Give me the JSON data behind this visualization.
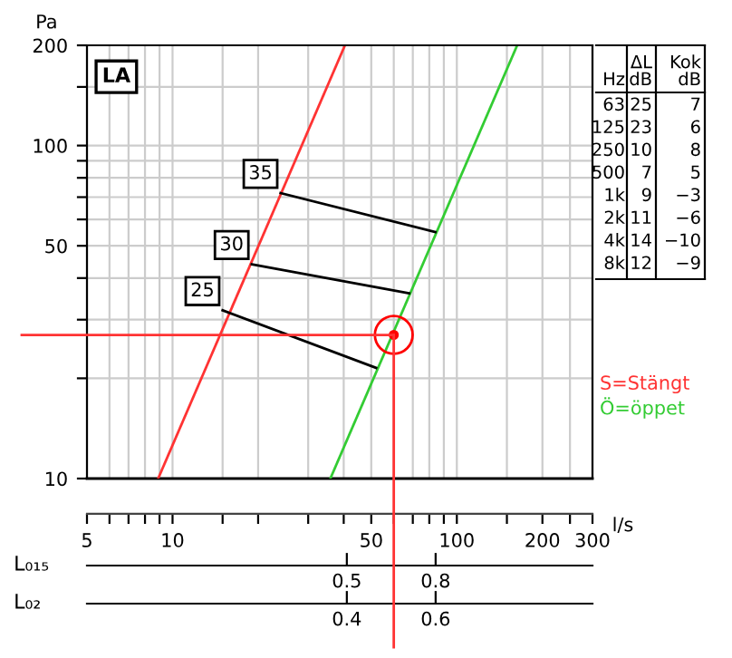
{
  "chart_data": {
    "type": "line",
    "log": "xy",
    "xlabel": "l/s",
    "ylabel": "Pa",
    "x2label": "L₀₁₅",
    "x2lim": [
      -0.378,
      1.33
    ],
    "x2ticks": [
      0.5,
      0.8
    ],
    "xlim": [
      5,
      300
    ],
    "ylim": [
      10,
      200
    ],
    "xticks": [
      5,
      {
        "value": 6,
        "label": null
      },
      {
        "value": 7,
        "label": null
      },
      {
        "value": 8,
        "label": null
      },
      {
        "value": 9,
        "label": null
      },
      10,
      {
        "value": 15,
        "label": null
      },
      {
        "value": 20,
        "label": null
      },
      {
        "value": 30,
        "label": null
      },
      {
        "value": 40,
        "label": null
      },
      50,
      {
        "value": 60,
        "label": null
      },
      {
        "value": 70,
        "label": null
      },
      {
        "value": 80,
        "label": null
      },
      {
        "value": 90,
        "label": null
      },
      100,
      {
        "value": 150,
        "label": null
      },
      200,
      {
        "value": 250,
        "label": null
      },
      300
    ],
    "yticks": [
      10,
      {
        "value": 20,
        "label": null
      },
      {
        "value": 30,
        "label": null
      },
      {
        "value": 40,
        "label": null
      },
      50,
      {
        "value": 60,
        "label": null
      },
      {
        "value": 70,
        "label": null
      },
      {
        "value": 80,
        "label": null
      },
      {
        "value": 90,
        "label": null
      },
      100,
      {
        "value": 150,
        "label": null
      },
      200
    ],
    "grid": true,
    "legend": "right",
    "series": [
      {
        "name": "S=Stängt",
        "color": "#ff3333",
        "x": [
          8.9,
          40.4
        ],
        "values": [
          10,
          200
        ]
      },
      {
        "name": "Ö=öppet",
        "color": "#33cc33",
        "x": [
          35.9,
          163
        ],
        "values": [
          10,
          200
        ]
      },
      {
        "name": "35",
        "color": "#000000",
        "x": [
          24,
          84
        ],
        "values": [
          72,
          55
        ]
      },
      {
        "name": "30",
        "color": "#000000",
        "x": [
          19,
          68
        ],
        "values": [
          44,
          36
        ]
      },
      {
        "name": "25",
        "color": "#000000",
        "x": [
          15,
          52
        ],
        "values": [
          32,
          21.5
        ]
      },
      {
        "type": "scatter",
        "marker": "circle",
        "color": "#ff0000",
        "x": [
          60
        ],
        "values": [
          27
        ]
      }
    ],
    "ref_lines": [
      {
        "axis": "x",
        "value": 60,
        "color": "#ff3333"
      },
      {
        "axis": "y",
        "value": 27,
        "color": "#ff3333"
      }
    ],
    "annotations": [
      "LA",
      "Hz",
      "ΔL\ndB",
      "Kok\ndB",
      "63",
      "25",
      "7",
      "125",
      "23",
      "6",
      "250",
      "10",
      "8",
      "500",
      "7",
      "5",
      "1k",
      "9",
      "−3",
      "2k",
      "11",
      "−6",
      "4k",
      "14",
      "−10",
      "8k",
      "12",
      "−9",
      "L₀₂",
      "0.4",
      "0.6"
    ]
  }
}
